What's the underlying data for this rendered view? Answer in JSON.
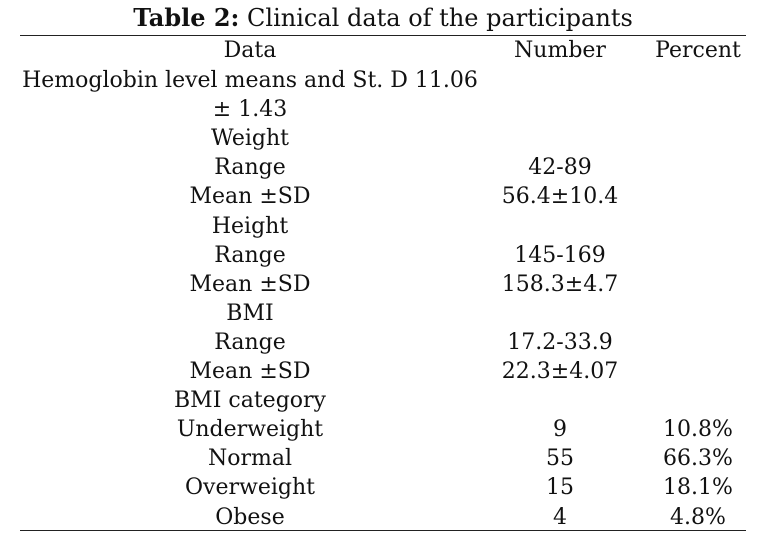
{
  "caption": {
    "label": "Table 2:",
    "text": " Clinical data of the participants"
  },
  "header": {
    "data": "Data",
    "number": "Number",
    "percent": "Percent"
  },
  "rows": [
    {
      "data": "Hemoglobin level means and St. D 11.06",
      "number": "",
      "percent": ""
    },
    {
      "data": "± 1.43",
      "number": "",
      "percent": ""
    },
    {
      "data": "Weight",
      "number": "",
      "percent": ""
    },
    {
      "data": "Range",
      "number": "42-89",
      "percent": ""
    },
    {
      "data": "Mean ±SD",
      "number": "56.4±10.4",
      "percent": ""
    },
    {
      "data": "Height",
      "number": "",
      "percent": ""
    },
    {
      "data": "Range",
      "number": "145-169",
      "percent": ""
    },
    {
      "data": "Mean ±SD",
      "number": "158.3±4.7",
      "percent": ""
    },
    {
      "data": "BMI",
      "number": "",
      "percent": ""
    },
    {
      "data": "Range",
      "number": "17.2-33.9",
      "percent": ""
    },
    {
      "data": "Mean ±SD",
      "number": "22.3±4.07",
      "percent": ""
    },
    {
      "data": "BMI category",
      "number": "",
      "percent": ""
    },
    {
      "data": "Underweight",
      "number": "9",
      "percent": "10.8%"
    },
    {
      "data": "Normal",
      "number": "55",
      "percent": "66.3%"
    },
    {
      "data": "Overweight",
      "number": "15",
      "percent": "18.1%"
    },
    {
      "data": "Obese",
      "number": "4",
      "percent": "4.8%"
    }
  ]
}
